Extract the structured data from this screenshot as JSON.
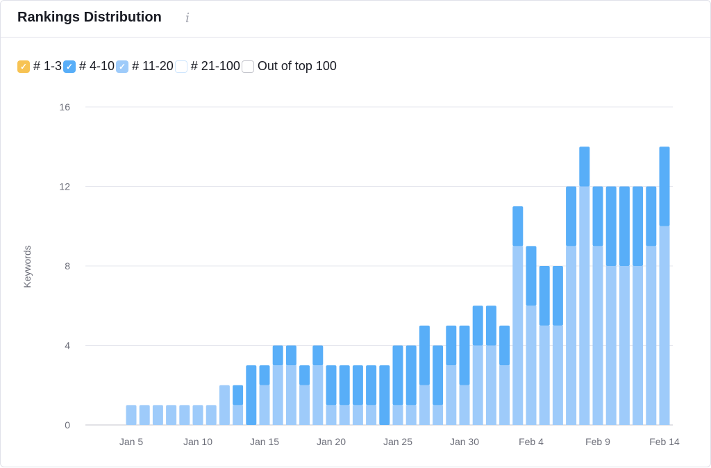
{
  "header": {
    "title": "Rankings Distribution",
    "info_icon": "info-icon"
  },
  "legend": [
    {
      "label": "# 1-3",
      "checked": true,
      "color": "#f7c353"
    },
    {
      "label": "# 4-10",
      "checked": true,
      "color": "#58aef8"
    },
    {
      "label": "# 11-20",
      "checked": true,
      "color": "#9ecbfa"
    },
    {
      "label": "# 21-100",
      "checked": false,
      "color": "#cfe6fd"
    },
    {
      "label": "Out of top 100",
      "checked": false,
      "color": "#c4c5cc"
    }
  ],
  "chart_data": {
    "type": "bar",
    "stacked": true,
    "title": "Rankings Distribution",
    "xlabel": "",
    "ylabel": "Keywords",
    "ylim": [
      0,
      16
    ],
    "yticks": [
      0,
      4,
      8,
      12,
      16
    ],
    "grid": true,
    "xtick_labels": [
      "Jan 5",
      "Jan 10",
      "Jan 15",
      "Jan 20",
      "Jan 25",
      "Jan 30",
      "Feb 4",
      "Feb 9",
      "Feb 14"
    ],
    "xtick_every": 5,
    "categories": [
      "Jan 5",
      "Jan 6",
      "Jan 7",
      "Jan 8",
      "Jan 9",
      "Jan 10",
      "Jan 11",
      "Jan 12",
      "Jan 13",
      "Jan 14",
      "Jan 15",
      "Jan 16",
      "Jan 17",
      "Jan 18",
      "Jan 19",
      "Jan 20",
      "Jan 21",
      "Jan 22",
      "Jan 23",
      "Jan 24",
      "Jan 25",
      "Jan 26",
      "Jan 27",
      "Jan 28",
      "Jan 29",
      "Jan 30",
      "Jan 31",
      "Feb 1",
      "Feb 2",
      "Feb 3",
      "Feb 4",
      "Feb 5",
      "Feb 6",
      "Feb 7",
      "Feb 8",
      "Feb 9",
      "Feb 10",
      "Feb 11",
      "Feb 12",
      "Feb 13",
      "Feb 14"
    ],
    "series": [
      {
        "name": "# 11-20",
        "color": "#9ecbfa",
        "values": [
          1,
          1,
          1,
          1,
          1,
          1,
          1,
          2,
          1,
          0,
          2,
          3,
          3,
          2,
          3,
          1,
          1,
          1,
          1,
          0,
          1,
          1,
          2,
          1,
          3,
          2,
          4,
          4,
          3,
          9,
          6,
          5,
          5,
          9,
          12,
          9,
          8,
          8,
          8,
          9,
          10
        ]
      },
      {
        "name": "# 4-10",
        "color": "#58aef8",
        "values": [
          0,
          0,
          0,
          0,
          0,
          0,
          0,
          0,
          1,
          3,
          1,
          1,
          1,
          1,
          1,
          2,
          2,
          2,
          2,
          3,
          3,
          3,
          3,
          3,
          2,
          3,
          2,
          2,
          2,
          2,
          3,
          3,
          3,
          3,
          2,
          3,
          4,
          4,
          4,
          3,
          4
        ]
      }
    ]
  }
}
